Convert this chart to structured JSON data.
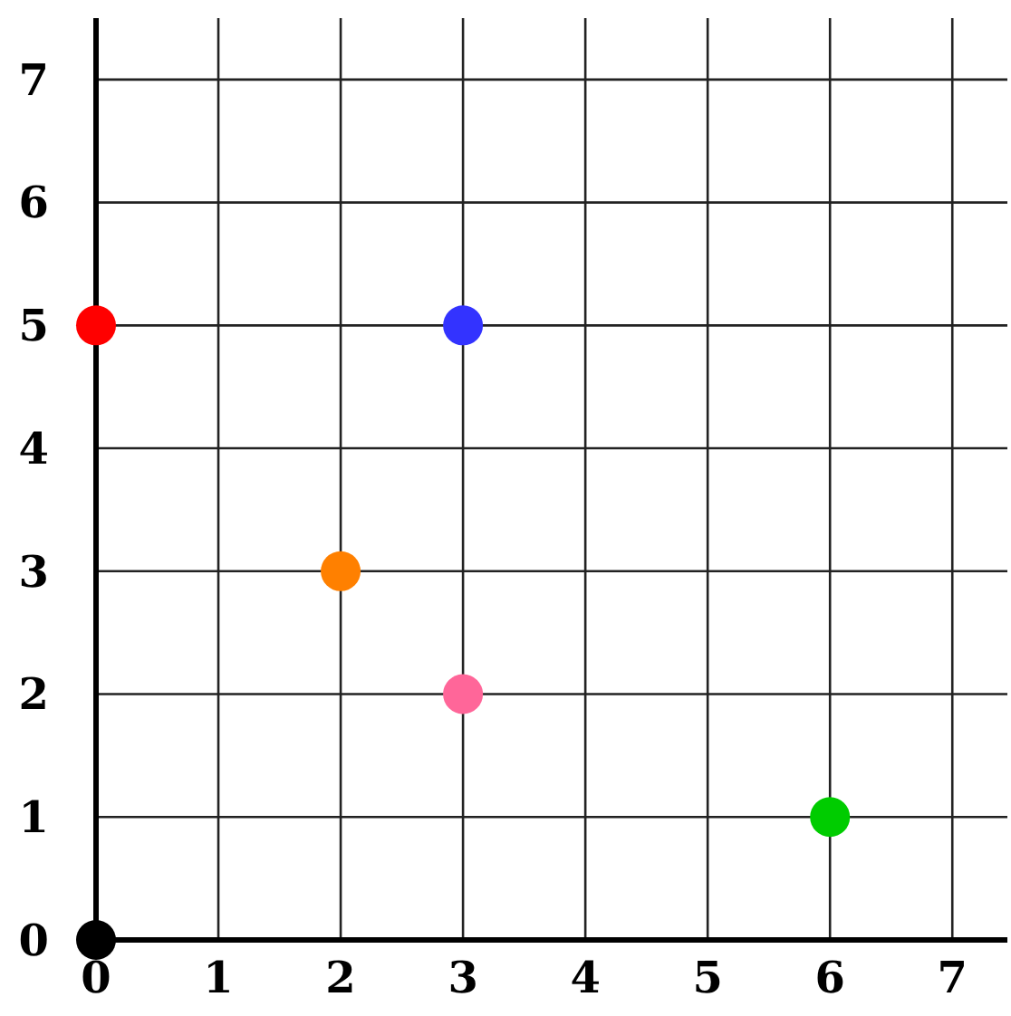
{
  "chart_data": {
    "type": "scatter",
    "x": [
      0,
      3,
      2,
      3,
      6,
      0
    ],
    "values": [
      5,
      5,
      3,
      2,
      1,
      0
    ],
    "colors": [
      "#ff0000",
      "#3333ff",
      "#ff8000",
      "#ff6699",
      "#00cc00",
      "#000000"
    ],
    "xlim": [
      0,
      7.45
    ],
    "ylim": [
      0,
      7.5
    ],
    "xticks": [
      0,
      1,
      2,
      3,
      4,
      5,
      6,
      7
    ],
    "yticks": [
      0,
      1,
      2,
      3,
      4,
      5,
      6,
      7
    ],
    "grid": true,
    "marker": "circle"
  }
}
